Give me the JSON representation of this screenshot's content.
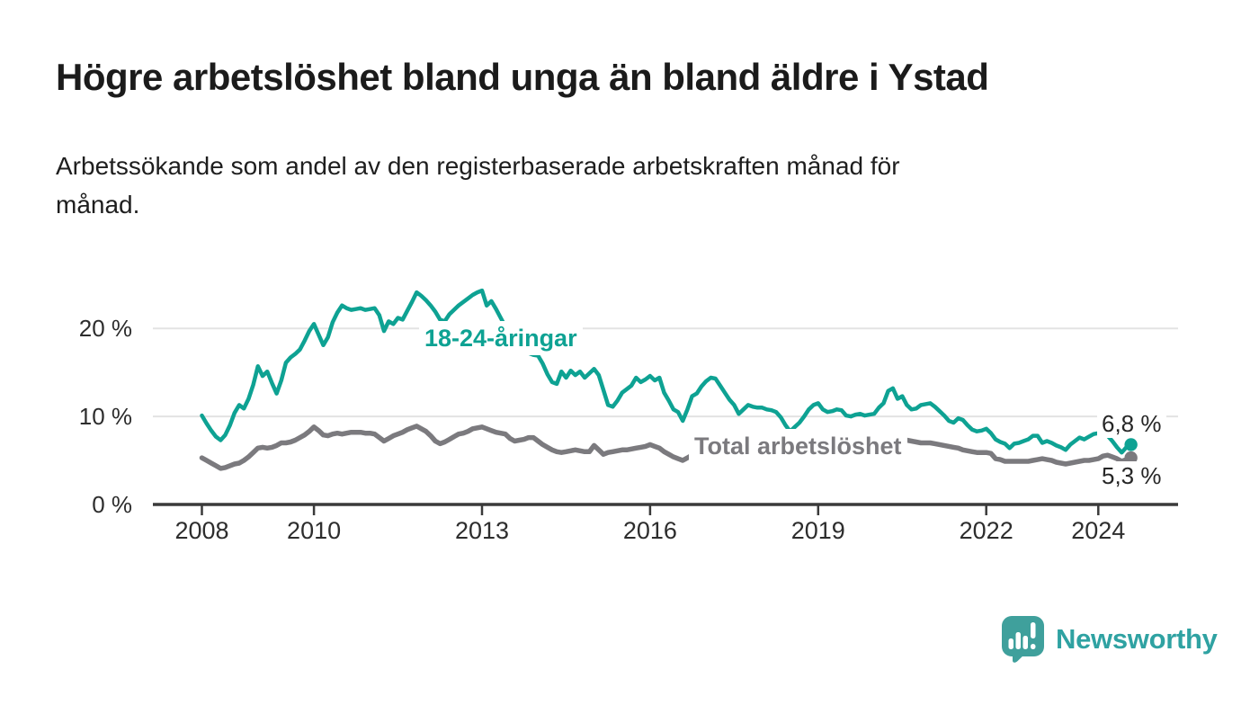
{
  "title": "Högre arbetslöshet bland unga än bland äldre i Ystad",
  "subtitle": {
    "lines": [
      "Arbetssökande som andel av den registerbaserade arbetskraften månad för",
      "månad."
    ]
  },
  "chart_data": {
    "type": "line",
    "unit": "%",
    "frequency": "monthly",
    "x_start": "2008-01",
    "x_end": "2024-08",
    "grid": "horizontal",
    "ylim": [
      0,
      26
    ],
    "y_axis": {
      "ticks": [
        {
          "value": 0,
          "label": "0 %"
        },
        {
          "value": 10,
          "label": "10 %"
        },
        {
          "value": 20,
          "label": "20 %"
        }
      ]
    },
    "x_axis": {
      "ticks": [
        {
          "year": 2008,
          "label": "2008"
        },
        {
          "year": 2010,
          "label": "2010"
        },
        {
          "year": 2013,
          "label": "2013"
        },
        {
          "year": 2016,
          "label": "2016"
        },
        {
          "year": 2019,
          "label": "2019"
        },
        {
          "year": 2022,
          "label": "2022"
        },
        {
          "year": 2024,
          "label": "2024"
        }
      ]
    },
    "series": [
      {
        "name": "18-24-åringar",
        "color": "#0ea293",
        "end_label": "6,8 %",
        "end_value": 6.8,
        "values": [
          10.1,
          9.2,
          8.4,
          7.7,
          7.3,
          7.9,
          9.0,
          10.4,
          11.3,
          10.9,
          12.0,
          13.6,
          15.7,
          14.6,
          15.1,
          13.8,
          12.6,
          14.1,
          16.1,
          16.7,
          17.1,
          17.6,
          18.6,
          19.7,
          20.5,
          19.3,
          18.1,
          19.0,
          20.7,
          21.8,
          22.6,
          22.3,
          22.1,
          22.2,
          22.3,
          22.1,
          22.2,
          22.3,
          21.5,
          19.7,
          20.8,
          20.5,
          21.2,
          21.0,
          22.0,
          23.0,
          24.1,
          23.7,
          23.2,
          22.6,
          21.9,
          21.0,
          20.8,
          21.6,
          22.1,
          22.6,
          23.0,
          23.4,
          23.8,
          24.1,
          24.3,
          22.6,
          23.1,
          22.2,
          21.2,
          20.2,
          19.4,
          18.7,
          18.1,
          17.6,
          17.2,
          17.0,
          16.9,
          16.0,
          14.8,
          13.9,
          13.7,
          15.1,
          14.4,
          15.2,
          14.7,
          15.1,
          14.4,
          14.9,
          15.4,
          14.7,
          13.0,
          11.3,
          11.1,
          11.8,
          12.7,
          13.1,
          13.5,
          14.4,
          13.9,
          14.2,
          14.6,
          14.1,
          14.4,
          12.7,
          11.8,
          10.8,
          10.5,
          9.5,
          10.8,
          12.3,
          12.6,
          13.4,
          14.0,
          14.4,
          14.3,
          13.5,
          12.7,
          11.9,
          11.3,
          10.3,
          10.8,
          11.3,
          11.1,
          11.0,
          11.0,
          10.8,
          10.7,
          10.5,
          9.9,
          9.0,
          8.3,
          8.8,
          9.3,
          10.0,
          10.8,
          11.3,
          11.5,
          10.8,
          10.5,
          10.6,
          10.8,
          10.7,
          10.1,
          10.0,
          10.2,
          10.3,
          10.1,
          10.2,
          10.3,
          11.0,
          11.5,
          12.9,
          13.2,
          12.0,
          12.3,
          11.3,
          10.8,
          10.9,
          11.3,
          11.4,
          11.5,
          11.1,
          10.6,
          10.1,
          9.5,
          9.3,
          9.8,
          9.6,
          9.0,
          8.5,
          8.3,
          8.4,
          8.6,
          8.1,
          7.4,
          7.1,
          6.9,
          6.4,
          6.9,
          7.0,
          7.2,
          7.4,
          7.8,
          7.8,
          7.0,
          7.2,
          7.0,
          6.7,
          6.5,
          6.2,
          6.8,
          7.2,
          7.6,
          7.4,
          7.7,
          8.0,
          8.1,
          8.3,
          7.8,
          7.2,
          6.5,
          5.9,
          6.5,
          6.8
        ]
      },
      {
        "name": "Total arbetslöshet",
        "color": "#7b7a7e",
        "end_label": "5,3 %",
        "end_value": 5.3,
        "values": [
          5.3,
          5.0,
          4.7,
          4.4,
          4.1,
          4.2,
          4.4,
          4.6,
          4.7,
          5.0,
          5.4,
          5.9,
          6.4,
          6.5,
          6.4,
          6.5,
          6.7,
          7.0,
          7.0,
          7.1,
          7.3,
          7.6,
          7.9,
          8.3,
          8.8,
          8.4,
          7.9,
          7.8,
          8.0,
          8.1,
          8.0,
          8.1,
          8.2,
          8.2,
          8.2,
          8.1,
          8.1,
          8.0,
          7.6,
          7.2,
          7.5,
          7.8,
          8.0,
          8.2,
          8.5,
          8.7,
          8.9,
          8.6,
          8.3,
          7.8,
          7.2,
          6.9,
          7.1,
          7.4,
          7.7,
          8.0,
          8.1,
          8.3,
          8.6,
          8.7,
          8.8,
          8.6,
          8.4,
          8.2,
          8.1,
          8.0,
          7.5,
          7.2,
          7.3,
          7.4,
          7.6,
          7.6,
          7.2,
          6.8,
          6.5,
          6.2,
          6.0,
          5.9,
          6.0,
          6.1,
          6.2,
          6.1,
          6.0,
          6.0,
          6.7,
          6.2,
          5.7,
          5.9,
          6.0,
          6.1,
          6.2,
          6.2,
          6.3,
          6.4,
          6.5,
          6.6,
          6.8,
          6.6,
          6.4,
          6.0,
          5.7,
          5.4,
          5.2,
          5.0,
          5.3,
          5.6,
          5.9,
          6.1,
          6.2,
          6.3,
          6.2,
          6.0,
          5.8,
          5.6,
          5.5,
          5.4,
          5.5,
          5.6,
          5.7,
          5.8,
          5.8,
          5.8,
          5.7,
          5.5,
          5.3,
          5.2,
          5.1,
          5.1,
          5.2,
          5.3,
          5.4,
          5.5,
          5.6,
          5.7,
          5.6,
          5.5,
          5.5,
          5.6,
          5.6,
          5.7,
          5.8,
          5.9,
          6.0,
          6.1,
          6.3,
          6.4,
          6.8,
          7.2,
          7.4,
          7.5,
          7.4,
          7.3,
          7.2,
          7.1,
          7.0,
          7.0,
          7.0,
          6.9,
          6.8,
          6.7,
          6.6,
          6.5,
          6.4,
          6.2,
          6.1,
          6.0,
          5.9,
          5.9,
          5.9,
          5.8,
          5.2,
          5.1,
          4.9,
          4.9,
          4.9,
          4.9,
          4.9,
          4.9,
          5.0,
          5.1,
          5.2,
          5.1,
          5.0,
          4.8,
          4.7,
          4.6,
          4.7,
          4.8,
          4.9,
          5.0,
          5.0,
          5.1,
          5.2,
          5.5,
          5.6,
          5.4,
          5.2,
          4.9,
          5.1,
          5.3
        ]
      }
    ]
  },
  "footer": {
    "brand": "Newsworthy"
  },
  "colors": {
    "accent_teal": "#0ea293",
    "line_gray": "#7b7a7e",
    "logo_teal": "#3fa09c",
    "grid": "#e3e3e3",
    "axis": "#3a3a3a"
  }
}
